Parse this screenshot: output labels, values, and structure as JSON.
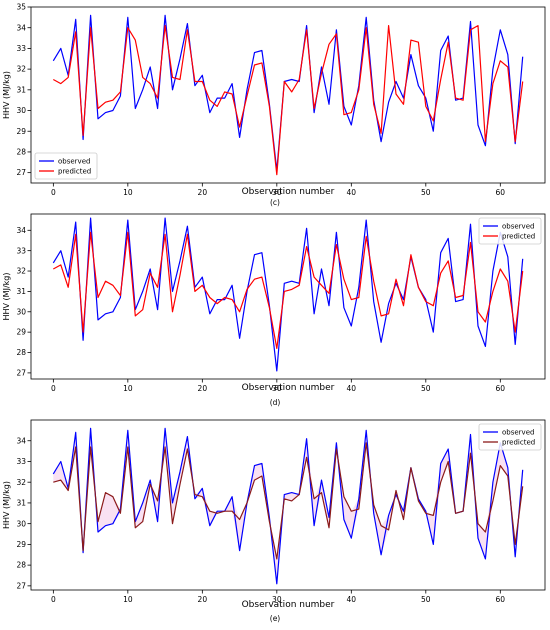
{
  "colors": {
    "observed": "#0000ff",
    "predicted_cd": "#ff0000",
    "predicted_e": "#8b1a1a",
    "band_e": "#f4c8e8"
  },
  "panels": [
    {
      "caption": "(c)",
      "xlabel": "Observation number",
      "ylabel": "HHV (MJ/kg)",
      "legend": [
        "observed",
        "predicted"
      ],
      "legend_loc": "bottom-left"
    },
    {
      "caption": "(d)",
      "xlabel": "Observation number",
      "ylabel": "HHV (MJ/kg)",
      "legend": [
        "observed",
        "predicted"
      ],
      "legend_loc": "top-right"
    },
    {
      "caption": "(e)",
      "xlabel": "Observation number",
      "ylabel": "HHV (MJ/kg)",
      "legend": [
        "observed",
        "predicted"
      ],
      "legend_loc": "top-right"
    }
  ],
  "chart_data": [
    {
      "type": "line",
      "xlabel": "Observation number",
      "ylabel": "HHV (MJ/kg)",
      "xlim": [
        -3,
        66
      ],
      "ylim": [
        26.5,
        35
      ],
      "xticks": [
        0,
        10,
        20,
        30,
        40,
        50,
        60
      ],
      "yticks": [
        27,
        28,
        29,
        30,
        31,
        32,
        33,
        34,
        35
      ],
      "series": [
        {
          "name": "observed",
          "values": [
            32.4,
            33.0,
            31.7,
            34.4,
            28.6,
            34.6,
            29.6,
            29.9,
            30.0,
            30.7,
            34.5,
            30.1,
            31.0,
            32.1,
            30.1,
            34.6,
            31.0,
            32.5,
            34.2,
            31.2,
            31.7,
            29.9,
            30.6,
            30.6,
            31.3,
            28.7,
            31.0,
            32.8,
            32.9,
            30.3,
            27.1,
            31.4,
            31.5,
            31.4,
            34.1,
            29.9,
            32.1,
            30.3,
            33.9,
            30.2,
            29.3,
            31.2,
            34.5,
            30.5,
            28.5,
            30.4,
            31.4,
            30.6,
            32.7,
            31.2,
            30.6,
            29.0,
            32.9,
            33.6,
            30.5,
            30.6,
            34.3,
            29.3,
            28.3,
            32.0,
            33.9,
            32.7,
            28.4,
            32.6
          ]
        },
        {
          "name": "predicted",
          "values": [
            31.5,
            31.3,
            31.6,
            33.8,
            28.8,
            34.0,
            30.1,
            30.4,
            30.5,
            30.9,
            34.0,
            33.4,
            31.6,
            31.3,
            30.6,
            34.1,
            31.6,
            31.5,
            33.9,
            31.4,
            31.4,
            30.5,
            30.2,
            30.9,
            30.8,
            29.2,
            30.7,
            32.2,
            32.3,
            30.2,
            26.9,
            31.4,
            30.9,
            31.5,
            33.9,
            30.1,
            31.8,
            33.2,
            33.7,
            29.8,
            29.9,
            31.0,
            34.0,
            30.3,
            28.9,
            34.1,
            30.8,
            30.3,
            33.4,
            33.3,
            30.2,
            29.5,
            31.5,
            33.3,
            30.6,
            30.5,
            33.9,
            34.1,
            28.5,
            31.3,
            32.4,
            32.1,
            28.5,
            31.4
          ]
        }
      ]
    },
    {
      "type": "line",
      "xlabel": "Observation number",
      "ylabel": "HHV (MJ/kg)",
      "xlim": [
        -3,
        66
      ],
      "ylim": [
        26.7,
        34.8
      ],
      "xticks": [
        0,
        10,
        20,
        30,
        40,
        50,
        60
      ],
      "yticks": [
        27,
        28,
        29,
        30,
        31,
        32,
        33,
        34
      ],
      "series": [
        {
          "name": "observed",
          "values": [
            32.4,
            33.0,
            31.7,
            34.4,
            28.6,
            34.6,
            29.6,
            29.9,
            30.0,
            30.7,
            34.5,
            30.1,
            31.0,
            32.1,
            30.1,
            34.6,
            31.0,
            32.5,
            34.2,
            31.2,
            31.7,
            29.9,
            30.6,
            30.6,
            31.3,
            28.7,
            31.0,
            32.8,
            32.9,
            30.3,
            27.1,
            31.4,
            31.5,
            31.4,
            34.1,
            29.9,
            32.1,
            30.3,
            33.9,
            30.2,
            29.3,
            31.2,
            34.5,
            30.5,
            28.5,
            30.4,
            31.4,
            30.6,
            32.7,
            31.2,
            30.6,
            29.0,
            32.9,
            33.6,
            30.5,
            30.6,
            34.3,
            29.3,
            28.3,
            32.0,
            33.9,
            32.7,
            28.4,
            32.6
          ]
        },
        {
          "name": "predicted",
          "values": [
            32.1,
            32.3,
            31.2,
            33.8,
            29.0,
            33.9,
            30.7,
            31.5,
            31.3,
            30.8,
            33.9,
            29.8,
            30.1,
            31.9,
            31.2,
            33.8,
            30.0,
            31.8,
            33.8,
            31.0,
            31.3,
            30.7,
            30.4,
            30.7,
            30.6,
            30.0,
            31.1,
            31.6,
            31.7,
            30.2,
            28.2,
            31.0,
            31.1,
            31.3,
            33.2,
            31.7,
            31.3,
            30.9,
            33.3,
            31.6,
            30.6,
            30.7,
            33.7,
            31.5,
            29.8,
            29.9,
            31.6,
            30.3,
            32.8,
            31.2,
            30.5,
            30.3,
            31.9,
            32.5,
            30.7,
            30.8,
            33.4,
            30.0,
            29.5,
            31.0,
            32.1,
            31.5,
            29.0,
            32.0
          ]
        }
      ]
    },
    {
      "type": "line",
      "xlabel": "Observation number",
      "ylabel": "HHV (MJ/kg)",
      "xlim": [
        -3,
        66
      ],
      "ylim": [
        26.8,
        35.0
      ],
      "xticks": [
        0,
        10,
        20,
        30,
        40,
        50,
        60
      ],
      "yticks": [
        27,
        28,
        29,
        30,
        31,
        32,
        33,
        34
      ],
      "series": [
        {
          "name": "observed",
          "values": [
            32.4,
            33.0,
            31.7,
            34.4,
            28.6,
            34.6,
            29.6,
            29.9,
            30.0,
            30.7,
            34.5,
            30.1,
            31.0,
            32.1,
            30.1,
            34.6,
            31.0,
            32.5,
            34.2,
            31.2,
            31.7,
            29.9,
            30.6,
            30.6,
            31.3,
            28.7,
            31.0,
            32.8,
            32.9,
            30.3,
            27.1,
            31.4,
            31.5,
            31.4,
            34.1,
            29.9,
            32.1,
            30.3,
            33.9,
            30.2,
            29.3,
            31.2,
            34.5,
            30.5,
            28.5,
            30.4,
            31.4,
            30.6,
            32.7,
            31.2,
            30.6,
            29.0,
            32.9,
            33.6,
            30.5,
            30.6,
            34.3,
            29.3,
            28.3,
            32.0,
            33.9,
            32.7,
            28.4,
            32.6
          ]
        },
        {
          "name": "predicted",
          "values": [
            32.0,
            32.1,
            31.6,
            33.7,
            28.7,
            33.7,
            30.1,
            31.5,
            31.3,
            30.5,
            33.7,
            29.8,
            30.1,
            31.9,
            31.1,
            33.7,
            30.0,
            31.9,
            33.6,
            31.4,
            31.3,
            30.6,
            30.5,
            30.6,
            30.6,
            30.2,
            31.0,
            32.1,
            32.3,
            30.1,
            28.3,
            31.2,
            31.1,
            31.4,
            33.2,
            31.2,
            31.5,
            29.8,
            33.6,
            31.3,
            30.6,
            30.7,
            33.9,
            30.9,
            29.9,
            29.7,
            31.6,
            30.2,
            32.7,
            31.1,
            30.5,
            30.4,
            32.0,
            33.0,
            30.5,
            30.6,
            33.4,
            30.0,
            29.6,
            31.1,
            32.8,
            32.3,
            29.0,
            31.8
          ]
        }
      ]
    }
  ]
}
